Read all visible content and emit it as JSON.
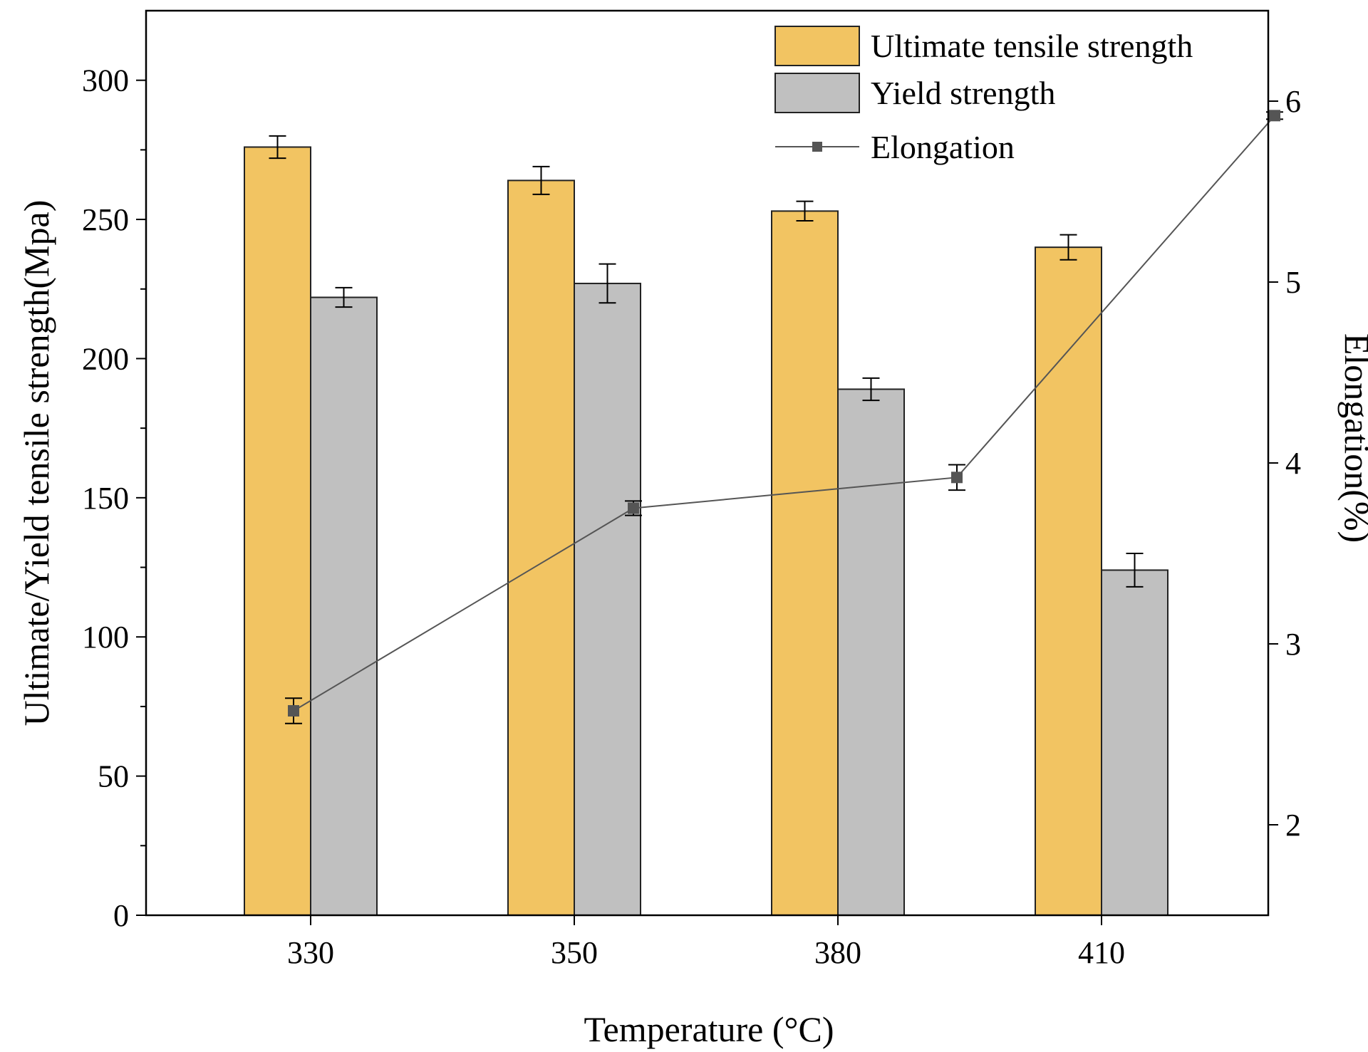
{
  "chart_data": {
    "type": "bar",
    "title": "",
    "xlabel": "Temperature (°C)",
    "ylabel": "Ultimate/Yield tensile strength(Mpa)",
    "y2label": "Elongation(%)",
    "categories": [
      "330",
      "350",
      "380",
      "410"
    ],
    "ylim": [
      0,
      325
    ],
    "y2lim": [
      1.5,
      6.5
    ],
    "yticks": [
      0,
      50,
      100,
      150,
      200,
      250,
      300
    ],
    "y2ticks": [
      2,
      3,
      4,
      5,
      6
    ],
    "series": [
      {
        "name": "Ultimate tensile strength",
        "type": "bar",
        "axis": "left",
        "color": "#f2c462",
        "values": [
          276,
          264,
          253,
          240
        ],
        "errors": [
          4,
          5,
          3.5,
          4.5
        ]
      },
      {
        "name": "Yield strength",
        "type": "bar",
        "axis": "left",
        "color": "#c0c0c0",
        "values": [
          222,
          227,
          189,
          124
        ],
        "errors": [
          3.5,
          7,
          4,
          6
        ]
      },
      {
        "name": "Elongation",
        "type": "line",
        "axis": "right",
        "color": "#555555",
        "values": [
          2.63,
          3.75,
          3.92,
          5.92
        ],
        "errors": [
          0.07,
          0.04,
          0.07,
          0.02
        ]
      }
    ],
    "legend": "top-right",
    "grid": false
  }
}
